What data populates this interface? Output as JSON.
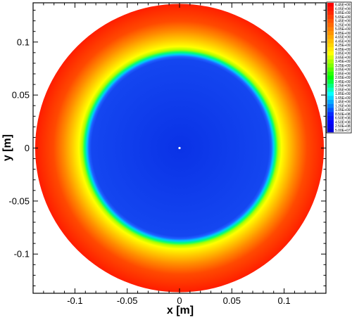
{
  "chart_data": {
    "type": "heatmap",
    "title": "",
    "xlabel": "x [m]",
    "ylabel": "y [m]",
    "xlim": [
      -0.14,
      0.14
    ],
    "ylim": [
      -0.137,
      0.137
    ],
    "xticks": [
      -0.1,
      -0.05,
      0,
      0.05,
      0.1
    ],
    "xtick_labels": [
      "-0.1",
      "-0.05",
      "0",
      "0.05",
      "0.1"
    ],
    "yticks": [
      -0.1,
      -0.05,
      0,
      0.05,
      0.1
    ],
    "ytick_labels": [
      "-0.1",
      "-0.05",
      "0",
      "0.05",
      "0.1"
    ],
    "domain": {
      "shape": "disk",
      "center": [
        0,
        0
      ],
      "radius": 0.138
    },
    "inner_region_radius": 0.088,
    "transition_width": 0.007,
    "legend_position": "right",
    "colorbar": {
      "labels": [
        "6.45E+09",
        "6.05E+09",
        "5.85E+09",
        "5.65E+09",
        "5.45E+09",
        "5.25E+09",
        "5.05E+09",
        "4.85E+09",
        "4.65E+09",
        "4.45E+09",
        "4.25E+09",
        "4.05E+09",
        "3.85E+09",
        "3.65E+09",
        "3.45E+09",
        "3.25E+09",
        "3.05E+09",
        "2.85E+09",
        "2.65E+09",
        "2.45E+09",
        "2.25E+09",
        "2.05E+09",
        "1.85E+09",
        "1.65E+09",
        "1.45E+09",
        "1.25E+09",
        "1.05E+09",
        "8.50E+08",
        "6.50E+08",
        "4.50E+08",
        "2.50E+08",
        "5.00E+07"
      ],
      "colors": [
        "#ff0000",
        "#ff1500",
        "#ff2a00",
        "#ff4000",
        "#ff5500",
        "#ff6a00",
        "#ff8000",
        "#ff9500",
        "#ffaa00",
        "#ffbf00",
        "#ffd500",
        "#ffea00",
        "#ffff00",
        "#d5ff00",
        "#aaff00",
        "#80ff00",
        "#55ff00",
        "#2aff00",
        "#00ff00",
        "#00ff40",
        "#00ff80",
        "#00ffbf",
        "#00ffff",
        "#00d5ff",
        "#00aaff",
        "#0080ff",
        "#0055ff",
        "#002aff",
        "#0015ff",
        "#0000ff",
        "#0000ea",
        "#0000d5"
      ]
    },
    "center_marker": [
      0,
      0
    ]
  }
}
